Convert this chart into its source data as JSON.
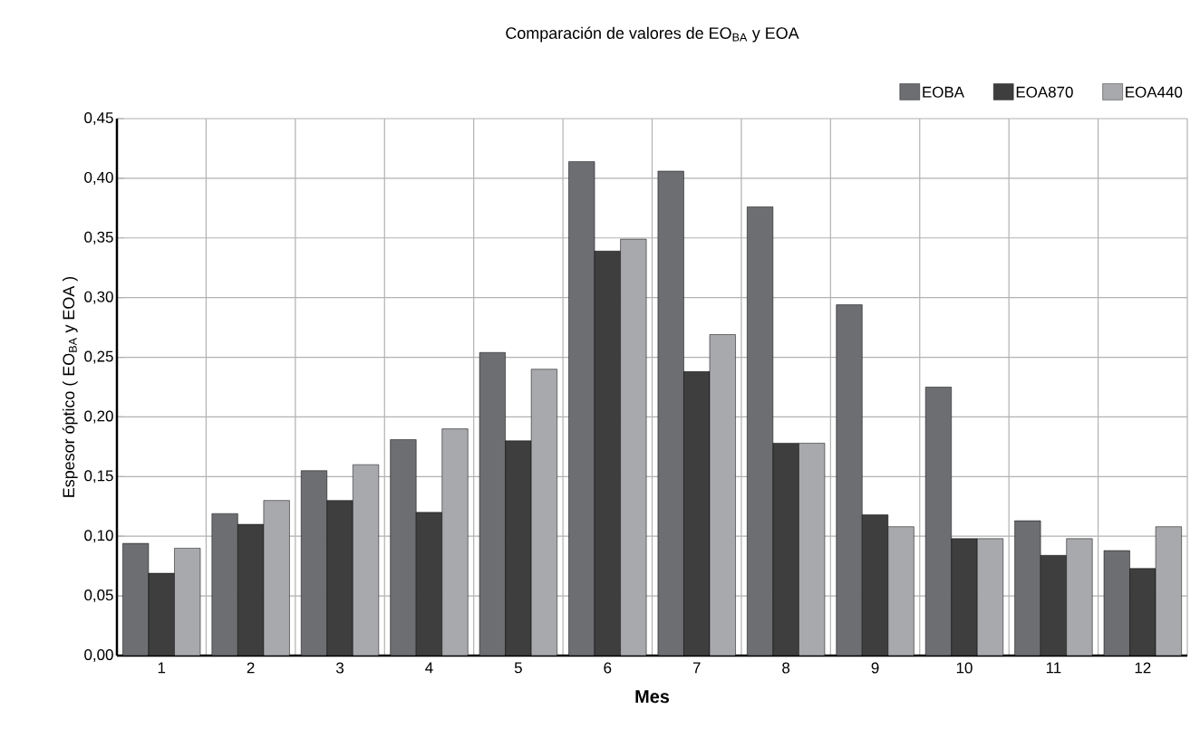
{
  "chart_data": {
    "type": "bar",
    "title": "Comparación de valores de EO$_{BA}$ y EOA",
    "xlabel": "Mes",
    "ylabel": "Espesor óptico ( EO$_{BA}$ y EOA )",
    "categories": [
      "1",
      "2",
      "3",
      "4",
      "5",
      "6",
      "7",
      "8",
      "9",
      "10",
      "11",
      "12"
    ],
    "series": [
      {
        "name": "EOBA",
        "color": "#6d6e72",
        "values": [
          0.094,
          0.119,
          0.155,
          0.181,
          0.254,
          0.414,
          0.406,
          0.376,
          0.294,
          0.225,
          0.113,
          0.088
        ]
      },
      {
        "name": "EOA870",
        "color": "#3e3e3e",
        "values": [
          0.069,
          0.11,
          0.13,
          0.12,
          0.18,
          0.339,
          0.238,
          0.178,
          0.118,
          0.098,
          0.084,
          0.073
        ]
      },
      {
        "name": "EOA440",
        "color": "#a8a9ad",
        "values": [
          0.09,
          0.13,
          0.16,
          0.19,
          0.24,
          0.349,
          0.269,
          0.178,
          0.108,
          0.098,
          0.098,
          0.108
        ]
      }
    ],
    "ylim": [
      0,
      0.45
    ],
    "yticks": [
      {
        "value": 0,
        "label": "0,00"
      },
      {
        "value": 0.05,
        "label": "0,05"
      },
      {
        "value": 0.1,
        "label": "0,10"
      },
      {
        "value": 0.15,
        "label": "0,15"
      },
      {
        "value": 0.2,
        "label": "0,20"
      },
      {
        "value": 0.25,
        "label": "0,25"
      },
      {
        "value": 0.3,
        "label": "0,30"
      },
      {
        "value": 0.35,
        "label": "0,35"
      },
      {
        "value": 0.4,
        "label": "0,40"
      },
      {
        "value": 0.45,
        "label": "0,45"
      }
    ],
    "grid": true,
    "legend": "top right"
  }
}
